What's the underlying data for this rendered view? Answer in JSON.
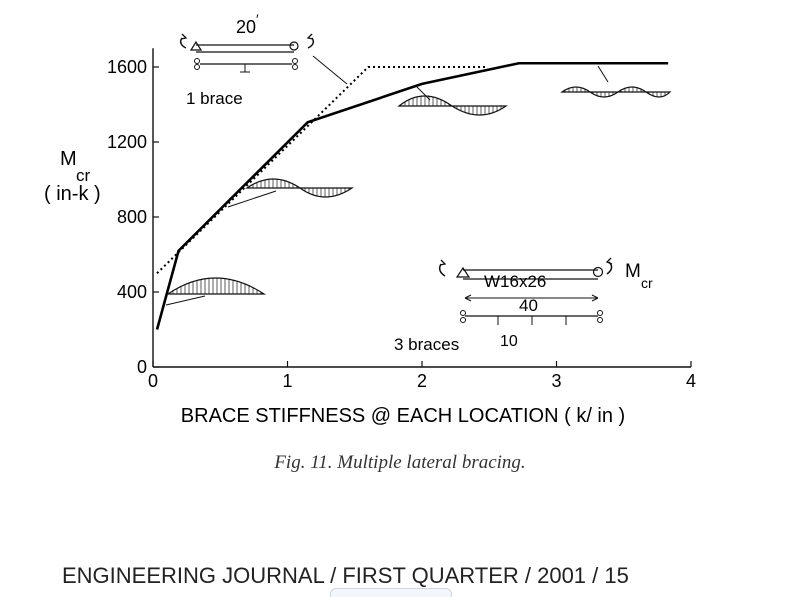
{
  "chart_data": {
    "type": "line",
    "xlabel": "BRACE STIFFNESS @ EACH LOCATION ( k/ in )",
    "ylabel": {
      "main": "M",
      "sub": "cr",
      "unit": "( in-k )"
    },
    "xlim": [
      0,
      4
    ],
    "ylim": [
      0,
      1700
    ],
    "xticks": [
      0,
      1,
      2,
      3,
      4
    ],
    "yticks": [
      0,
      400,
      800,
      1200,
      1600
    ],
    "grid": false,
    "series": [
      {
        "style": "solid",
        "x": [
          0.03,
          0.19,
          1.15,
          2.0,
          2.72,
          3.83
        ],
        "y": [
          200,
          620,
          1305,
          1510,
          1620,
          1620
        ]
      },
      {
        "style": "dotted",
        "x": [
          0.03,
          1.6,
          2.48
        ],
        "y": [
          500,
          1600,
          1600
        ]
      }
    ]
  },
  "annotations": {
    "one_brace": {
      "span": "20",
      "label": "1 brace"
    },
    "three_braces": {
      "section": "W16x26",
      "span": "40",
      "spacing": "10",
      "label": "3 braces",
      "moment": {
        "main": "M",
        "sub": "cr"
      }
    }
  },
  "caption": "Fig. 11. Multiple lateral bracing.",
  "footer": "ENGINEERING JOURNAL / FIRST QUARTER / 2001 / 15"
}
